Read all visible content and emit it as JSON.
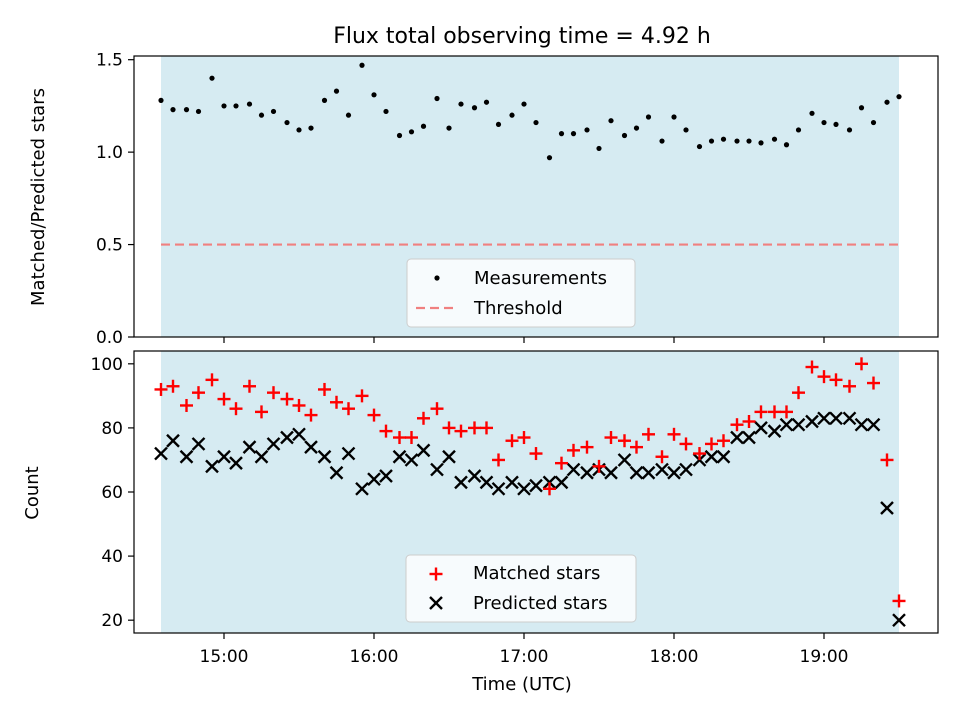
{
  "chart_data": [
    {
      "type": "scatter",
      "title": "Flux total observing time = 4.92 h",
      "xlabel": "",
      "ylabel": "Matched/Predicted stars",
      "xlim": [
        14.4,
        19.76
      ],
      "ylim": [
        0.0,
        1.52
      ],
      "shaded_span": [
        14.58,
        19.5
      ],
      "x_ticks": [
        15,
        16,
        17,
        18,
        19
      ],
      "y_ticks": [
        0.0,
        0.5,
        1.0,
        1.5
      ],
      "y_tick_labels": [
        "0.0",
        "0.5",
        "1.0",
        "1.5"
      ],
      "series": [
        {
          "name": "Measurements",
          "marker": "dot",
          "color": "#000000",
          "x": [
            14.58,
            14.66,
            14.75,
            14.83,
            14.92,
            15.0,
            15.08,
            15.17,
            15.25,
            15.33,
            15.42,
            15.5,
            15.58,
            15.67,
            15.75,
            15.83,
            15.92,
            16.0,
            16.08,
            16.17,
            16.25,
            16.33,
            16.42,
            16.5,
            16.58,
            16.67,
            16.75,
            16.83,
            16.92,
            17.0,
            17.08,
            17.17,
            17.25,
            17.33,
            17.42,
            17.5,
            17.58,
            17.67,
            17.75,
            17.83,
            17.92,
            18.0,
            18.08,
            18.17,
            18.25,
            18.33,
            18.42,
            18.5,
            18.58,
            18.67,
            18.75,
            18.83,
            18.92,
            19.0,
            19.08,
            19.17,
            19.25,
            19.33,
            19.42,
            19.5
          ],
          "values": [
            1.28,
            1.23,
            1.23,
            1.22,
            1.4,
            1.25,
            1.25,
            1.26,
            1.2,
            1.22,
            1.16,
            1.12,
            1.13,
            1.28,
            1.33,
            1.2,
            1.47,
            1.31,
            1.22,
            1.09,
            1.11,
            1.14,
            1.29,
            1.13,
            1.26,
            1.24,
            1.27,
            1.15,
            1.2,
            1.26,
            1.16,
            0.97,
            1.1,
            1.1,
            1.12,
            1.02,
            1.17,
            1.09,
            1.13,
            1.19,
            1.06,
            1.19,
            1.12,
            1.03,
            1.06,
            1.07,
            1.06,
            1.06,
            1.05,
            1.07,
            1.04,
            1.12,
            1.21,
            1.16,
            1.15,
            1.12,
            1.24,
            1.16,
            1.27,
            1.3
          ]
        },
        {
          "name": "Threshold",
          "marker": "dashed-line",
          "color": "#f08080",
          "x": [
            14.58,
            19.5
          ],
          "values": [
            0.5,
            0.5
          ]
        }
      ],
      "legend_position": "bottom-center"
    },
    {
      "type": "scatter",
      "title": "",
      "xlabel": "Time (UTC)",
      "ylabel": "Count",
      "xlim": [
        14.4,
        19.76
      ],
      "ylim": [
        16,
        104
      ],
      "shaded_span": [
        14.58,
        19.5
      ],
      "x_ticks": [
        15,
        16,
        17,
        18,
        19
      ],
      "x_tick_labels": [
        "15:00",
        "16:00",
        "17:00",
        "18:00",
        "19:00"
      ],
      "y_ticks": [
        20,
        40,
        60,
        80,
        100
      ],
      "y_tick_labels": [
        "20",
        "40",
        "60",
        "80",
        "100"
      ],
      "x": [
        14.58,
        14.66,
        14.75,
        14.83,
        14.92,
        15.0,
        15.08,
        15.17,
        15.25,
        15.33,
        15.42,
        15.5,
        15.58,
        15.67,
        15.75,
        15.83,
        15.92,
        16.0,
        16.08,
        16.17,
        16.25,
        16.33,
        16.42,
        16.5,
        16.58,
        16.67,
        16.75,
        16.83,
        16.92,
        17.0,
        17.08,
        17.17,
        17.25,
        17.33,
        17.42,
        17.5,
        17.58,
        17.67,
        17.75,
        17.83,
        17.92,
        18.0,
        18.08,
        18.17,
        18.25,
        18.33,
        18.42,
        18.5,
        18.58,
        18.67,
        18.75,
        18.83,
        18.92,
        19.0,
        19.08,
        19.17,
        19.25,
        19.33,
        19.42,
        19.5
      ],
      "series": [
        {
          "name": "Matched stars",
          "marker": "plus",
          "color": "#ff0000",
          "values": [
            92,
            93,
            87,
            91,
            95,
            89,
            86,
            93,
            85,
            91,
            89,
            87,
            84,
            92,
            88,
            86,
            90,
            84,
            79,
            77,
            77,
            83,
            86,
            80,
            79,
            80,
            80,
            70,
            76,
            77,
            72,
            61,
            69,
            73,
            74,
            68,
            77,
            76,
            74,
            78,
            71,
            78,
            75,
            72,
            75,
            76,
            81,
            82,
            85,
            85,
            85,
            91,
            99,
            96,
            95,
            93,
            100,
            94,
            70,
            26
          ]
        },
        {
          "name": "Predicted stars",
          "marker": "x",
          "color": "#000000",
          "values": [
            72,
            76,
            71,
            75,
            68,
            71,
            69,
            74,
            71,
            75,
            77,
            78,
            74,
            71,
            66,
            72,
            61,
            64,
            65,
            71,
            70,
            73,
            67,
            71,
            63,
            65,
            63,
            61,
            63,
            61,
            62,
            63,
            63,
            67,
            66,
            67,
            66,
            70,
            66,
            66,
            67,
            66,
            67,
            70,
            71,
            71,
            77,
            77,
            80,
            79,
            81,
            81,
            82,
            83,
            83,
            83,
            81,
            81,
            55,
            20
          ]
        }
      ],
      "legend_position": "bottom-center"
    }
  ]
}
